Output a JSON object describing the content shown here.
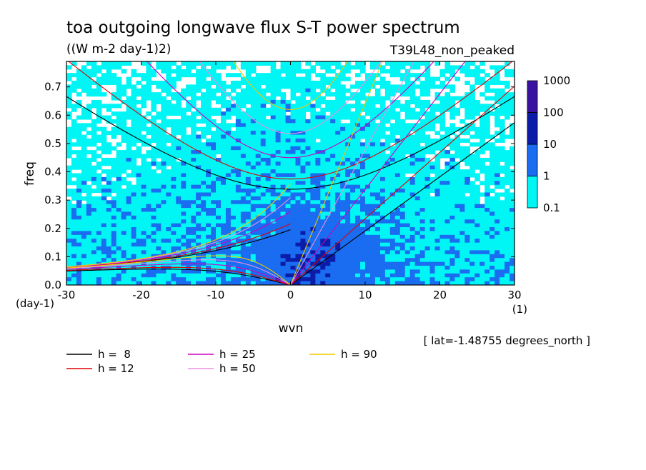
{
  "chart_data": {
    "type": "heatmap",
    "title": "toa outgoing longwave flux S-T power spectrum",
    "subtitle": "((W m-2 day-1)2)",
    "run_label": "T39L48_non_peaked",
    "xlabel": "wvn",
    "ylabel": "freq",
    "y_unit": "(day-1)",
    "x_unit": "(1)",
    "xlim": [
      -30,
      30
    ],
    "ylim": [
      0,
      0.79
    ],
    "x_ticks": [
      "-30",
      "-20",
      "-10",
      "0",
      "10",
      "20",
      "30"
    ],
    "y_ticks": [
      "0.0",
      "0.1",
      "0.2",
      "0.3",
      "0.4",
      "0.5",
      "0.6",
      "0.7"
    ],
    "note": "[ lat=-1.48755 degrees_north ]",
    "colorbar": {
      "levels": [
        "0.1",
        "1",
        "10",
        "100",
        "1000"
      ],
      "colors": [
        "#00f5f5",
        "#1a6cf0",
        "#0a1ca8",
        "#3a12a0"
      ]
    },
    "series": [
      {
        "name": "h =  8",
        "color": "#000000",
        "equivalent_depth": 8
      },
      {
        "name": "h = 12",
        "color": "#e00000",
        "equivalent_depth": 12
      },
      {
        "name": "h = 25",
        "color": "#d000c0",
        "equivalent_depth": 25
      },
      {
        "name": "h = 50",
        "color": "#e890e0",
        "equivalent_depth": 50
      },
      {
        "name": "h = 90",
        "color": "#f0c800",
        "equivalent_depth": 90
      }
    ]
  }
}
